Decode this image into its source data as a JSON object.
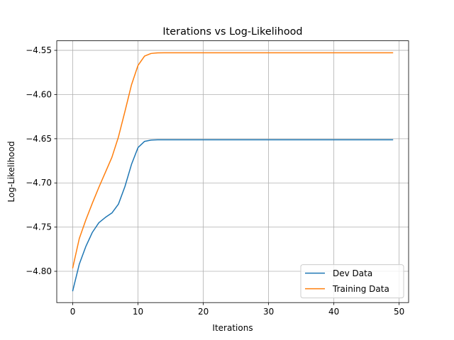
{
  "chart_data": {
    "type": "line",
    "title": "Iterations vs Log-Likelihood",
    "xlabel": "Iterations",
    "ylabel": "Log-Likelihood",
    "xlim": [
      -2.45,
      51.45
    ],
    "ylim": [
      -4.8354,
      -4.5392
    ],
    "xticks": [
      0,
      10,
      20,
      30,
      40,
      50
    ],
    "yticks": [
      -4.8,
      -4.75,
      -4.7,
      -4.65,
      -4.6,
      -4.55
    ],
    "xtick_labels": [
      "0",
      "10",
      "20",
      "30",
      "40",
      "50"
    ],
    "ytick_labels": [
      "−4.80",
      "−4.75",
      "−4.70",
      "−4.65",
      "−4.60",
      "−4.55"
    ],
    "grid": true,
    "legend_position": "lower-right",
    "x": [
      0,
      1,
      2,
      3,
      4,
      5,
      6,
      7,
      8,
      9,
      10,
      11,
      12,
      13,
      14,
      15,
      16,
      17,
      18,
      19,
      20,
      21,
      22,
      23,
      24,
      25,
      26,
      27,
      28,
      29,
      30,
      31,
      32,
      33,
      34,
      35,
      36,
      37,
      38,
      39,
      40,
      41,
      42,
      43,
      44,
      45,
      46,
      47,
      48,
      49
    ],
    "series": [
      {
        "name": "Dev Data",
        "color": "#1f77b4",
        "values": [
          -4.822,
          -4.792,
          -4.772,
          -4.756,
          -4.745,
          -4.739,
          -4.734,
          -4.724,
          -4.704,
          -4.679,
          -4.66,
          -4.653,
          -4.6515,
          -4.6512,
          -4.6512,
          -4.6512,
          -4.6512,
          -4.6512,
          -4.6512,
          -4.6512,
          -4.6512,
          -4.6512,
          -4.6512,
          -4.6512,
          -4.6512,
          -4.6512,
          -4.6512,
          -4.6512,
          -4.6512,
          -4.6512,
          -4.6512,
          -4.6512,
          -4.6512,
          -4.6512,
          -4.6512,
          -4.6512,
          -4.6512,
          -4.6512,
          -4.6512,
          -4.6512,
          -4.6512,
          -4.6512,
          -4.6512,
          -4.6512,
          -4.6512,
          -4.6512,
          -4.6512,
          -4.6512,
          -4.6512,
          -4.6512
        ]
      },
      {
        "name": "Training Data",
        "color": "#ff7f0e",
        "values": [
          -4.796,
          -4.763,
          -4.742,
          -4.723,
          -4.705,
          -4.688,
          -4.671,
          -4.648,
          -4.619,
          -4.589,
          -4.567,
          -4.5565,
          -4.5535,
          -4.5528,
          -4.5527,
          -4.5527,
          -4.5527,
          -4.5527,
          -4.5527,
          -4.5527,
          -4.5527,
          -4.5527,
          -4.5527,
          -4.5527,
          -4.5527,
          -4.5527,
          -4.5527,
          -4.5527,
          -4.5527,
          -4.5527,
          -4.5527,
          -4.5527,
          -4.5527,
          -4.5527,
          -4.5527,
          -4.5527,
          -4.5527,
          -4.5527,
          -4.5527,
          -4.5527,
          -4.5527,
          -4.5527,
          -4.5527,
          -4.5527,
          -4.5527,
          -4.5527,
          -4.5527,
          -4.5527,
          -4.5527,
          -4.5527
        ]
      }
    ]
  }
}
